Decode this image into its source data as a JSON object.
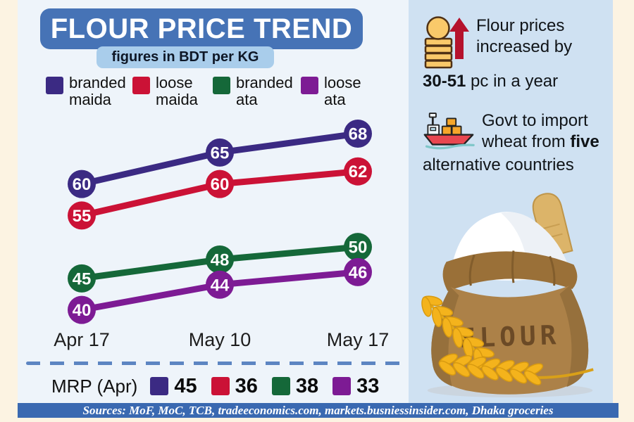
{
  "header": {
    "title": "FLOUR PRICE TREND",
    "subtitle": "figures in BDT per KG"
  },
  "chart_data": {
    "type": "line",
    "title": "FLOUR PRICE TREND",
    "unit": "BDT per KG",
    "categories": [
      "Apr 17",
      "May 10",
      "May 17"
    ],
    "series": [
      {
        "name": "branded maida",
        "color": "#3b2a83",
        "values": [
          60,
          65,
          68
        ],
        "mrp_apr": 45
      },
      {
        "name": "loose maida",
        "color": "#cb1236",
        "values": [
          55,
          60,
          62
        ],
        "mrp_apr": 36
      },
      {
        "name": "branded ata",
        "color": "#156839",
        "values": [
          45,
          48,
          50
        ],
        "mrp_apr": 38
      },
      {
        "name": "loose ata",
        "color": "#7d1b94",
        "values": [
          40,
          44,
          46
        ],
        "mrp_apr": 33
      }
    ],
    "ylim": [
      38,
      70
    ],
    "grid": false,
    "legend_position": "top",
    "data_labels": true
  },
  "mrp": {
    "label": "MRP (Apr)"
  },
  "facts": [
    {
      "icon": "coins-rise-icon",
      "line1": "Flour prices",
      "line2": "increased by",
      "bold": "30-51",
      "tail": " pc in a year"
    },
    {
      "icon": "cargo-ship-icon",
      "line1": "Govt to import",
      "line2_pre": "wheat from ",
      "line2_bold": "five",
      "line3": "alternative countries"
    }
  ],
  "sack": {
    "label": "FLOUR"
  },
  "sources": {
    "text": "Sources: MoF, MoC, TCB, tradeeconomics.com, markets.busniessinsider.com, Dhaka groceries"
  },
  "colors": {
    "canvas_bg": "#fcf3e2",
    "chart_panel_bg": "#eef4fa",
    "facts_panel_bg": "#cfe1f2",
    "title_box": "#4673b6",
    "subtitle_box": "#a9cdeb",
    "sources_bar": "#3a69b1",
    "dashed_divider": "#5d85c2",
    "arrow_red": "#b5122d",
    "coin_gold": "#f9c96a"
  }
}
